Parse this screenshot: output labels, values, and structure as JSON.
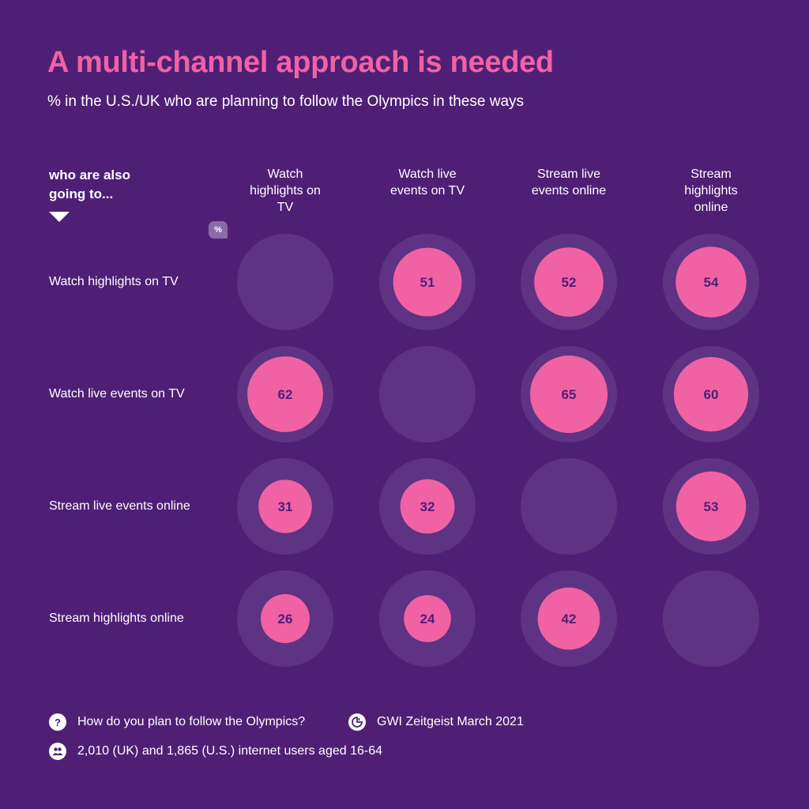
{
  "title": "A multi-channel approach is needed",
  "subtitle": "% in the U.S./UK who are planning to follow the Olympics in these ways",
  "row_header": "who are also going to...",
  "percent_badge": "%",
  "chart_data": {
    "type": "bubble-matrix",
    "columns": [
      "Watch highlights on TV",
      "Watch live events on TV",
      "Stream live events online",
      "Stream highlights online"
    ],
    "rows": [
      "Watch highlights on TV",
      "Watch live events on TV",
      "Stream live events online",
      "Stream highlights online"
    ],
    "values": [
      [
        null,
        51,
        52,
        54
      ],
      [
        62,
        null,
        65,
        60
      ],
      [
        31,
        32,
        null,
        53
      ],
      [
        26,
        24,
        42,
        null
      ]
    ],
    "unit": "%"
  },
  "footer": {
    "question": "How do you plan to follow the Olympics?",
    "source": "GWI Zeitgeist March 2021",
    "sample": "2,010 (UK) and 1,865 (U.S.) internet users aged 16-64"
  },
  "colors": {
    "background": "#4f1f76",
    "accent": "#f062a4",
    "bubble_track": "#5e3383",
    "value_text": "#4f1f76"
  }
}
